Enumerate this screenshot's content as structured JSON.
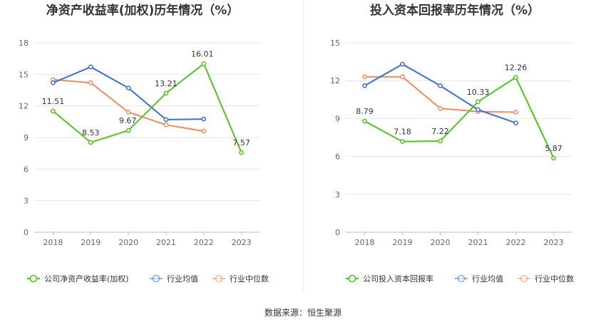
{
  "footer": {
    "source": "数据来源：恒生聚源"
  },
  "chart_data": [
    {
      "type": "line",
      "title": "净资产收益率(加权)历年情况（%）",
      "categories": [
        "2018",
        "2019",
        "2020",
        "2021",
        "2022",
        "2023"
      ],
      "ylim": [
        0,
        18
      ],
      "yticks": [
        0,
        3,
        6,
        9,
        12,
        15,
        18
      ],
      "grid": true,
      "legend_position": "bottom",
      "series": [
        {
          "name": "公司净资产收益率(加权)",
          "color": "#52c41a",
          "values": [
            11.51,
            8.53,
            9.67,
            13.21,
            16.01,
            7.57
          ],
          "labels": [
            "11.51",
            "8.53",
            "9.67",
            "13.21",
            "16.01",
            "7.57"
          ]
        },
        {
          "name": "行业均值",
          "color": "#3a6fd8",
          "values": [
            14.2,
            15.7,
            13.7,
            10.7,
            10.75,
            null
          ]
        },
        {
          "name": "行业中位数",
          "color": "#f08c5f",
          "values": [
            14.5,
            14.2,
            11.4,
            10.2,
            9.6,
            null
          ]
        }
      ]
    },
    {
      "type": "line",
      "title": "投入资本回报率历年情况（%）",
      "categories": [
        "2018",
        "2019",
        "2020",
        "2021",
        "2022",
        "2023"
      ],
      "ylim": [
        0,
        15
      ],
      "yticks": [
        0,
        3,
        6,
        9,
        12,
        15
      ],
      "grid": true,
      "legend_position": "bottom",
      "series": [
        {
          "name": "公司投入资本回报率",
          "color": "#52c41a",
          "values": [
            8.79,
            7.18,
            7.22,
            10.33,
            12.26,
            5.87
          ],
          "labels": [
            "8.79",
            "7.18",
            "7.22",
            "10.33",
            "12.26",
            "5.87"
          ]
        },
        {
          "name": "行业均值",
          "color": "#3a6fd8",
          "values": [
            11.6,
            13.3,
            11.6,
            9.7,
            8.65,
            null
          ]
        },
        {
          "name": "行业中位数",
          "color": "#f08c5f",
          "values": [
            12.3,
            12.3,
            9.8,
            9.55,
            9.5,
            null
          ]
        }
      ]
    }
  ]
}
